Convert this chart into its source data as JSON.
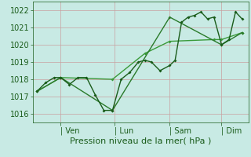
{
  "bg_color": "#c8eae4",
  "grid_color": "#c8a0a0",
  "line_color_dark": "#1a5c1a",
  "line_color_mid": "#2a7a2a",
  "line_color_light": "#3a9a3a",
  "markersize": 2.0,
  "linewidth": 1.0,
  "ylim": [
    1015.5,
    1022.5
  ],
  "yticks": [
    1016,
    1017,
    1018,
    1019,
    1020,
    1021,
    1022
  ],
  "xlabel": "Pression niveau de la mer( hPa )",
  "xlabel_fontsize": 8,
  "tick_label_fontsize": 7,
  "xtick_labels": [
    "| Ven",
    "| Lun",
    "| Sam",
    "| Dim"
  ],
  "xtick_positions": [
    0.13,
    0.38,
    0.635,
    0.875
  ],
  "xlim": [
    0.0,
    1.0
  ],
  "line1_x": [
    0.02,
    0.06,
    0.1,
    0.13,
    0.17,
    0.21,
    0.25,
    0.29,
    0.33,
    0.37,
    0.41,
    0.45,
    0.49,
    0.52,
    0.55,
    0.59,
    0.635,
    0.66,
    0.69,
    0.72,
    0.75,
    0.78,
    0.81,
    0.84,
    0.875,
    0.91,
    0.94,
    0.97
  ],
  "line1_y": [
    1017.3,
    1017.8,
    1018.1,
    1018.1,
    1017.7,
    1018.1,
    1018.1,
    1017.1,
    1016.2,
    1016.2,
    1018.0,
    1018.4,
    1019.0,
    1019.1,
    1019.0,
    1018.5,
    1018.8,
    1019.1,
    1021.3,
    1021.6,
    1021.7,
    1021.9,
    1021.5,
    1021.6,
    1020.0,
    1020.3,
    1021.9,
    1021.5
  ],
  "line2_x": [
    0.02,
    0.13,
    0.37,
    0.635,
    0.875,
    0.97
  ],
  "line2_y": [
    1017.3,
    1018.1,
    1016.2,
    1021.6,
    1020.0,
    1020.7
  ],
  "line3_x": [
    0.02,
    0.13,
    0.37,
    0.52,
    0.635,
    0.84,
    0.875,
    0.97
  ],
  "line3_y": [
    1017.3,
    1018.1,
    1018.0,
    1019.5,
    1020.2,
    1020.3,
    1020.3,
    1020.7
  ]
}
